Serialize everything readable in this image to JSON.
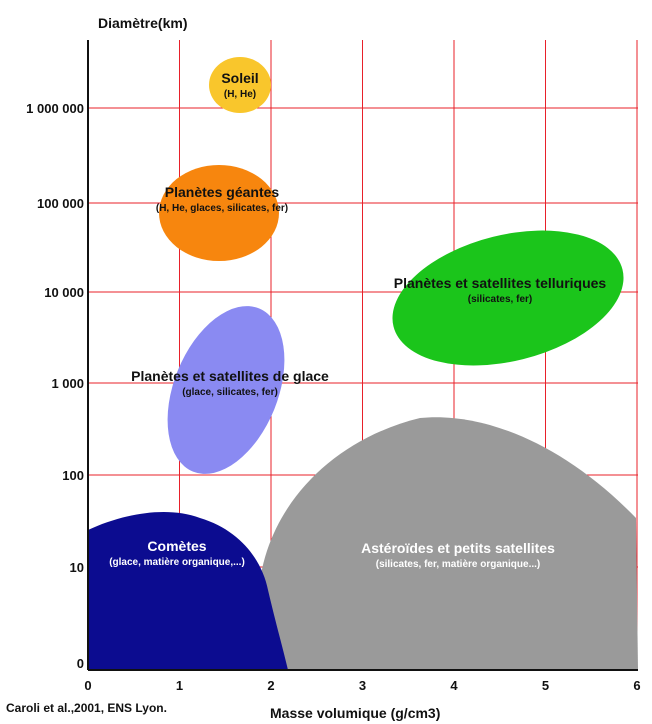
{
  "chart_data": {
    "type": "area",
    "ylabel": "Diamètre(km)",
    "xlabel": "Masse volumique (g/cm3)",
    "credit": "Caroli et al.,2001, ENS Lyon.",
    "x_ticks": [
      "0",
      "1",
      "2",
      "3",
      "4",
      "5",
      "6"
    ],
    "y_ticks": [
      "0",
      "10",
      "100",
      "1 000",
      "10 000",
      "100 000",
      "1 000 000"
    ],
    "xlim": [
      0,
      6
    ],
    "y_scale": "log",
    "grid": true,
    "grid_color": "#e8202a",
    "regions": [
      {
        "name": "Soleil",
        "composition": "(H, He)",
        "color": "#f9c62c",
        "text_color": "#111111",
        "density_center": 1.6,
        "diameter_center_km": 1400000
      },
      {
        "name": "Planètes géantes",
        "composition": "(H, He, glaces, silicates, fer)",
        "color": "#f7860e",
        "text_color": "#111111",
        "density_center": 1.4,
        "diameter_center_km": 100000
      },
      {
        "name": "Planètes et satellites telluriques",
        "composition": "(silicates, fer)",
        "color": "#1bc51b",
        "text_color": "#111111",
        "density_center": 4.6,
        "diameter_center_km": 7000
      },
      {
        "name": "Planètes et satellites de glace",
        "composition": "(glace, silicates, fer)",
        "color": "#8a8af2",
        "text_color": "#111111",
        "density_center": 1.6,
        "diameter_center_km": 1000
      },
      {
        "name": "Comètes",
        "composition": "(glace, matière organique,...)",
        "color": "#0c0c90",
        "text_color": "#ffffff",
        "density_center": 0.9,
        "diameter_center_km": 15
      },
      {
        "name": "Astéroïdes et petits satellites",
        "composition": "(silicates, fer, matière organique...)",
        "color": "#9a9a9a",
        "text_color": "#ffffff",
        "density_center": 3.7,
        "diameter_center_km": 12
      }
    ]
  }
}
